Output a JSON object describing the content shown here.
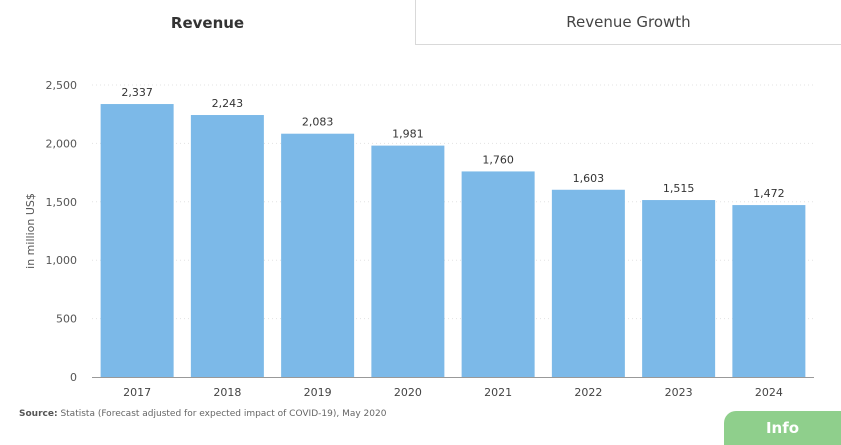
{
  "tabs": [
    {
      "label": "Revenue",
      "active": true
    },
    {
      "label": "Revenue Growth",
      "active": false
    }
  ],
  "chart_data": {
    "type": "bar",
    "categories": [
      "2017",
      "2018",
      "2019",
      "2020",
      "2021",
      "2022",
      "2023",
      "2024"
    ],
    "values": [
      2337,
      2243,
      2083,
      1981,
      1760,
      1603,
      1515,
      1472
    ],
    "data_labels": [
      "2,337",
      "2,243",
      "2,083",
      "1,981",
      "1,760",
      "1,603",
      "1,515",
      "1,472"
    ],
    "ylabel": "in million US$",
    "xlabel": "",
    "ylim": [
      0,
      2500
    ],
    "yticks": [
      0,
      500,
      1000,
      1500,
      2000,
      2500
    ],
    "ytick_labels": [
      "0",
      "500",
      "1,000",
      "1,500",
      "2,000",
      "2,500"
    ],
    "grid": true,
    "bar_color": "#7cb9e8"
  },
  "source": {
    "label": "Source:",
    "text": "Statista (Forecast adjusted for expected impact of COVID-19), May 2020"
  },
  "info_button": {
    "label": "Info",
    "color": "#8fcf8c"
  }
}
